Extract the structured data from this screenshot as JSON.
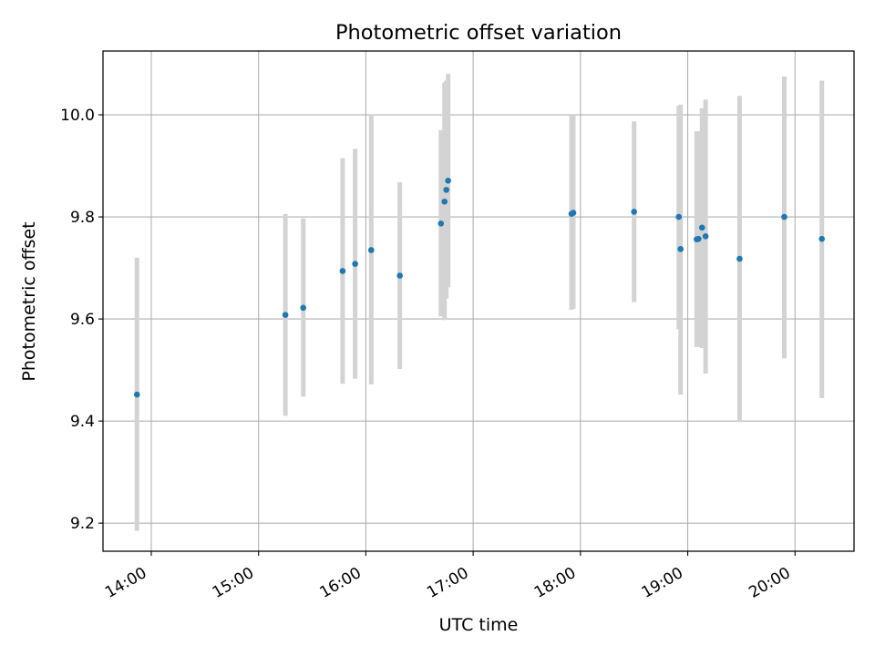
{
  "chart_data": {
    "type": "scatter",
    "title": "Photometric offset variation",
    "xlabel": "UTC time",
    "ylabel": "Photometric offset",
    "x_is_time": true,
    "xlim": [
      "13:33",
      "20:33"
    ],
    "ylim": [
      9.145,
      10.125
    ],
    "xticks": [
      "14:00",
      "15:00",
      "16:00",
      "17:00",
      "18:00",
      "19:00",
      "20:00"
    ],
    "yticks": [
      "9.2",
      "9.4",
      "9.6",
      "9.8",
      "10.0"
    ],
    "grid": true,
    "point_color": "#1f77b4",
    "errorbar_color": "#d3d3d3",
    "points": [
      {
        "x": "13:52",
        "y": 9.452,
        "lo": 9.185,
        "hi": 9.72
      },
      {
        "x": "15:15",
        "y": 9.608,
        "lo": 9.41,
        "hi": 9.806
      },
      {
        "x": "15:25",
        "y": 9.622,
        "lo": 9.448,
        "hi": 9.797
      },
      {
        "x": "15:47",
        "y": 9.694,
        "lo": 9.473,
        "hi": 9.915
      },
      {
        "x": "15:54",
        "y": 9.708,
        "lo": 9.483,
        "hi": 9.933
      },
      {
        "x": "16:03",
        "y": 9.735,
        "lo": 9.472,
        "hi": 10.0
      },
      {
        "x": "16:19",
        "y": 9.685,
        "lo": 9.502,
        "hi": 9.868
      },
      {
        "x": "16:42",
        "y": 9.787,
        "lo": 9.605,
        "hi": 9.97
      },
      {
        "x": "16:44",
        "y": 9.83,
        "lo": 9.598,
        "hi": 10.063
      },
      {
        "x": "16:45",
        "y": 9.853,
        "lo": 9.64,
        "hi": 10.067
      },
      {
        "x": "16:46",
        "y": 9.871,
        "lo": 9.662,
        "hi": 10.08
      },
      {
        "x": "17:55",
        "y": 9.806,
        "lo": 9.618,
        "hi": 10.0
      },
      {
        "x": "17:56",
        "y": 9.808,
        "lo": 9.62,
        "hi": 10.0
      },
      {
        "x": "18:30",
        "y": 9.81,
        "lo": 9.633,
        "hi": 9.987
      },
      {
        "x": "18:55",
        "y": 9.8,
        "lo": 9.58,
        "hi": 10.018
      },
      {
        "x": "18:56",
        "y": 9.737,
        "lo": 9.452,
        "hi": 10.02
      },
      {
        "x": "19:05",
        "y": 9.756,
        "lo": 9.545,
        "hi": 9.968
      },
      {
        "x": "19:06",
        "y": 9.757,
        "lo": 9.545,
        "hi": 9.968
      },
      {
        "x": "19:08",
        "y": 9.779,
        "lo": 9.543,
        "hi": 10.013
      },
      {
        "x": "19:10",
        "y": 9.762,
        "lo": 9.493,
        "hi": 10.03
      },
      {
        "x": "19:29",
        "y": 9.718,
        "lo": 9.398,
        "hi": 10.037
      },
      {
        "x": "19:54",
        "y": 9.8,
        "lo": 9.523,
        "hi": 10.075
      },
      {
        "x": "20:15",
        "y": 9.757,
        "lo": 9.445,
        "hi": 10.067
      }
    ]
  }
}
